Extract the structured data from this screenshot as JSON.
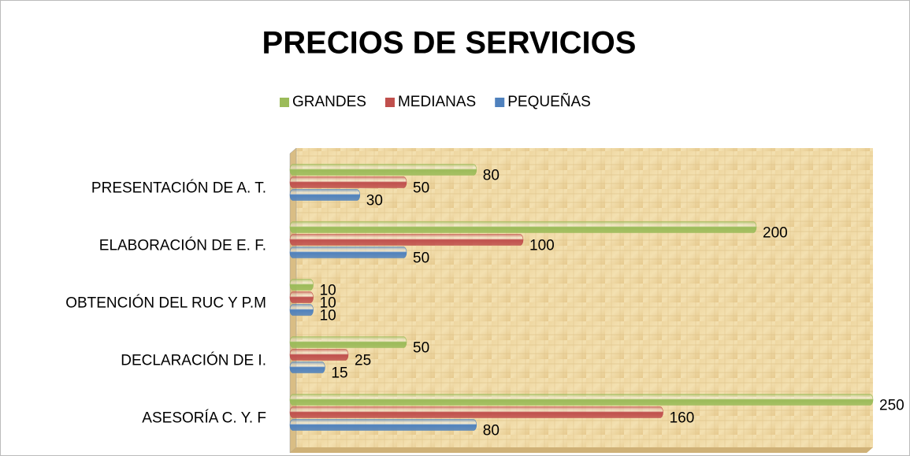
{
  "chart_data": {
    "type": "bar",
    "orientation": "horizontal",
    "title": "PRECIOS DE SERVICIOS",
    "categories": [
      "ASESORÍA C. Y. F",
      "DECLARACIÓN DE I.",
      "OBTENCIÓN DEL RUC Y P.M",
      "ELABORACIÓN DE E. F.",
      "PRESENTACIÓN DE A. T."
    ],
    "series": [
      {
        "name": "GRANDES",
        "color": "#9bbb59",
        "values": [
          250,
          50,
          10,
          200,
          80
        ]
      },
      {
        "name": "MEDIANAS",
        "color": "#c0504d",
        "values": [
          160,
          25,
          10,
          100,
          50
        ]
      },
      {
        "name": "PEQUEÑAS",
        "color": "#4f81bd",
        "values": [
          80,
          15,
          10,
          50,
          30
        ]
      }
    ],
    "xlim": [
      0,
      250
    ],
    "legend": "top"
  }
}
